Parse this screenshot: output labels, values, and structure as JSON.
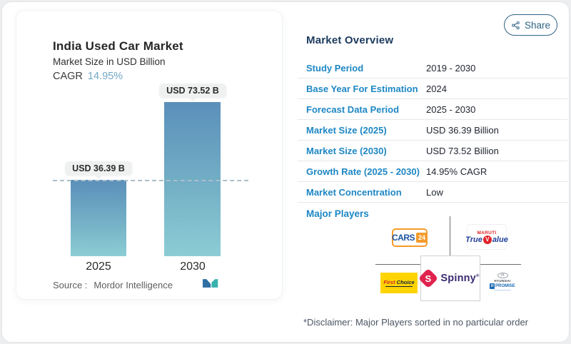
{
  "header": {
    "share_label": "Share"
  },
  "chart": {
    "title": "India Used Car Market",
    "subtitle": "Market Size in USD Billion",
    "cagr_label": "CAGR",
    "cagr_value": "14.95%",
    "source_label": "Source :",
    "source_name": "Mordor Intelligence",
    "logo": "mordor-intelligence-logo"
  },
  "chart_data": {
    "type": "bar",
    "title": "India Used Car Market",
    "ylabel": "Market Size in USD Billion",
    "categories": [
      "2025",
      "2030"
    ],
    "values": [
      36.39,
      73.52
    ],
    "bar_labels": [
      "USD 36.39 B",
      "USD 73.52 B"
    ],
    "cagr": "14.95%",
    "reference_line": 36.39,
    "ylim": [
      0,
      80
    ],
    "grid": false,
    "bar_color_top": "#5b8fba",
    "bar_color_bottom": "#8ccdd4"
  },
  "overview": {
    "title": "Market Overview",
    "rows": [
      {
        "label": "Study Period",
        "value": "2019 - 2030"
      },
      {
        "label": "Base Year For Estimation",
        "value": "2024"
      },
      {
        "label": "Forecast Data Period",
        "value": "2025 - 2030"
      },
      {
        "label": "Market Size (2025)",
        "value": "USD 36.39 Billion"
      },
      {
        "label": "Market Size (2030)",
        "value": "USD 73.52 Billion"
      },
      {
        "label": "Growth Rate (2025 - 2030)",
        "value": "14.95% CAGR"
      },
      {
        "label": "Market Concentration",
        "value": "Low"
      }
    ],
    "major_players_label": "Major Players",
    "players": {
      "cars24": {
        "name": "CARS",
        "badge": "24"
      },
      "maruti_true_value": {
        "brand": "MARUTI",
        "name_pre": "True",
        "name_v": "V",
        "name_post": "alue"
      },
      "mahindra_first_choice": {
        "first": "First",
        "choice": "Choice"
      },
      "spinny": {
        "mark": "S",
        "name": "Spinny",
        "reg": "®"
      },
      "hyundai_promise": {
        "oval_h": "H",
        "brand": "HYUNDAI",
        "badge_h": "H",
        "promise": "PROMISE"
      }
    },
    "disclaimer": "*Disclaimer: Major Players sorted in no particular order"
  },
  "colors": {
    "row_label_blue": "#1d87c4",
    "heading_navy": "#1c3a5e",
    "share_teal": "#2f6486",
    "cagr_blue": "#72a9c6",
    "bar_top": "#5b8fba",
    "bar_bottom": "#8ccdd4",
    "spinny_red": "#e0234e",
    "cars24_orange": "#f49b2a",
    "first_choice_yellow": "#ffd400"
  }
}
